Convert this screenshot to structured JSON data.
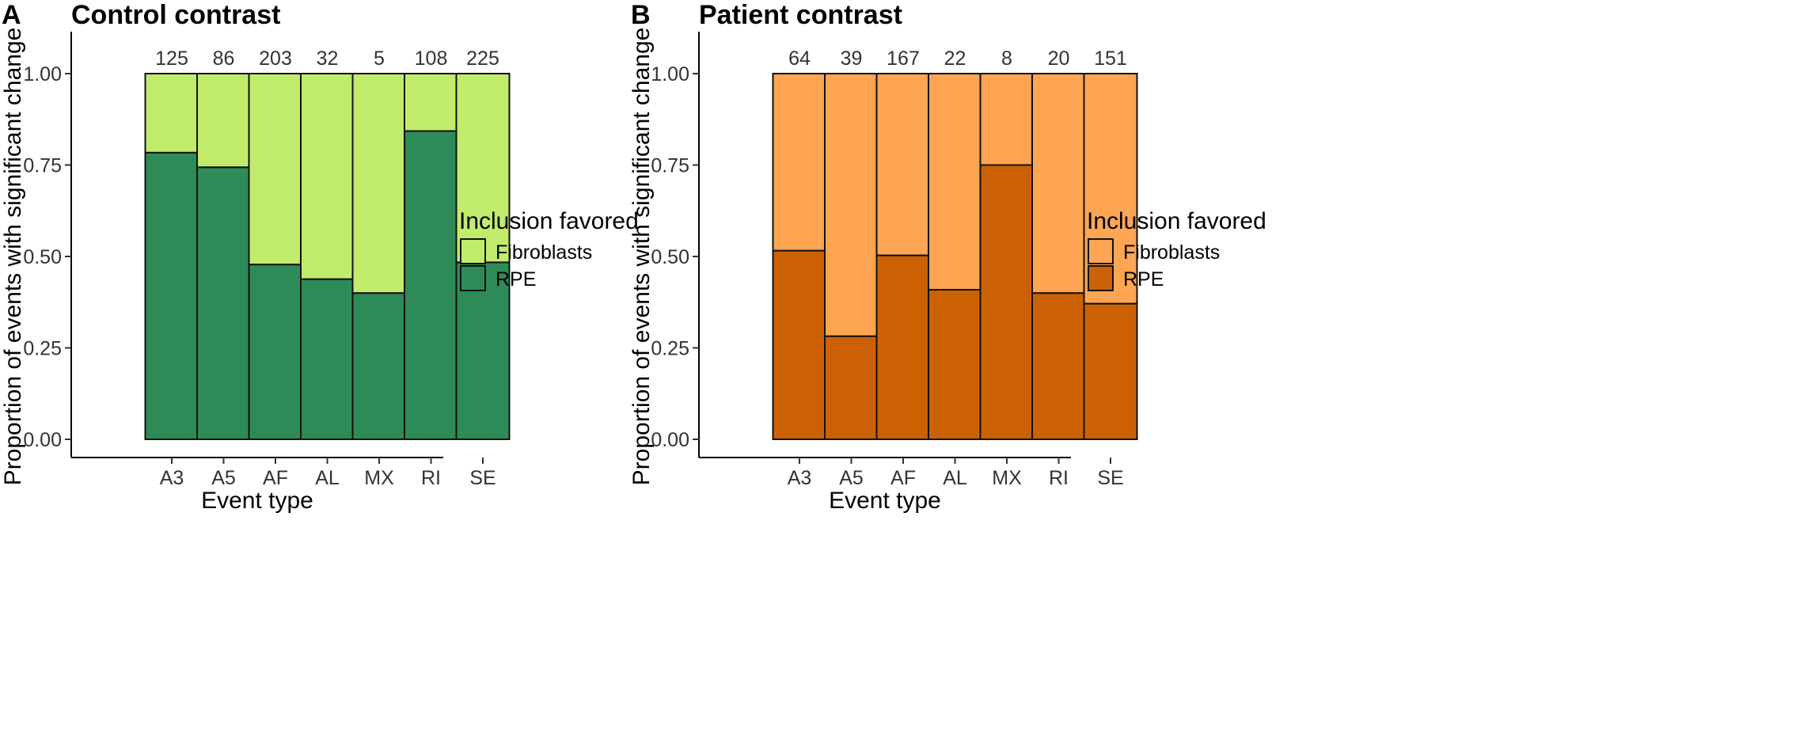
{
  "chart_data": [
    {
      "panel": "A",
      "type": "bar",
      "stacked": true,
      "title": "Control contrast",
      "xlabel": "Event type",
      "ylabel": "Proportion of events with significant change",
      "ylim": [
        0,
        1.09
      ],
      "yticks": [
        "0.00",
        "0.25",
        "0.50",
        "0.75",
        "1.00"
      ],
      "categories": [
        "A3",
        "A5",
        "AF",
        "AL",
        "MX",
        "RI",
        "SE"
      ],
      "counts": [
        "125",
        "86",
        "203",
        "32",
        "5",
        "108",
        "225"
      ],
      "series": [
        {
          "name": "RPE",
          "color": "#2e8b57",
          "values": [
            0.784,
            0.744,
            0.478,
            0.438,
            0.4,
            0.843,
            0.484
          ]
        },
        {
          "name": "Fibroblasts",
          "color": "#c1ec6b",
          "values": [
            0.216,
            0.256,
            0.522,
            0.562,
            0.6,
            0.157,
            0.516
          ]
        }
      ],
      "legend": {
        "title": "Inclusion favored",
        "items": [
          "Fibroblasts",
          "RPE"
        ]
      }
    },
    {
      "panel": "B",
      "type": "bar",
      "stacked": true,
      "title": "Patient contrast",
      "xlabel": "Event type",
      "ylabel": "Proportion of events with significant change",
      "ylim": [
        0,
        1.09
      ],
      "yticks": [
        "0.00",
        "0.25",
        "0.50",
        "0.75",
        "1.00"
      ],
      "categories": [
        "A3",
        "A5",
        "AF",
        "AL",
        "MX",
        "RI",
        "SE"
      ],
      "counts": [
        "64",
        "39",
        "167",
        "22",
        "8",
        "20",
        "151"
      ],
      "series": [
        {
          "name": "RPE",
          "color": "#cc6104",
          "values": [
            0.516,
            0.282,
            0.503,
            0.409,
            0.75,
            0.4,
            0.371
          ]
        },
        {
          "name": "Fibroblasts",
          "color": "#fda552",
          "values": [
            0.484,
            0.718,
            0.497,
            0.591,
            0.25,
            0.6,
            0.629
          ]
        }
      ],
      "legend": {
        "title": "Inclusion favored",
        "items": [
          "Fibroblasts",
          "RPE"
        ]
      }
    }
  ]
}
